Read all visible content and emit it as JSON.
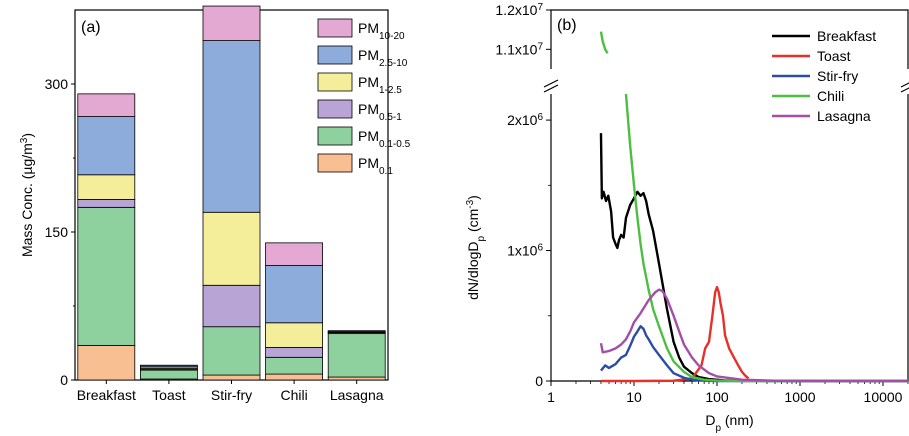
{
  "chart_data": [
    {
      "type": "bar",
      "stacked": true,
      "panel_label": "(a)",
      "ylabel": "Mass Conc. (µg/m³)",
      "ylabel_parts": {
        "base": "Mass Conc. (µg/m",
        "sup": "3",
        "end": ")"
      },
      "xlabel": "",
      "ylim": [
        0,
        375
      ],
      "yticks": [
        {
          "v": 0,
          "label": "0"
        },
        {
          "v": 150,
          "label": "150"
        },
        {
          "v": 300,
          "label": "300"
        }
      ],
      "categories": [
        "Breakfast",
        "Toast",
        "Stir-fry",
        "Chili",
        "Lasagna"
      ],
      "legend_position": "top-right",
      "series": [
        {
          "name": "PM0.1",
          "base": "PM",
          "sub": "0.1",
          "color": "#F8BF93",
          "values": [
            35,
            1,
            5,
            6,
            3
          ]
        },
        {
          "name": "PM0.1-0.5",
          "base": "PM",
          "sub": "0.1-0.5",
          "color": "#8FD19E",
          "values": [
            140,
            9,
            49,
            17,
            44
          ]
        },
        {
          "name": "PM0.5-1",
          "base": "PM",
          "sub": "0.5-1",
          "color": "#B9A4D6",
          "values": [
            8,
            1,
            42,
            10,
            1
          ]
        },
        {
          "name": "PM1-2.5",
          "base": "PM",
          "sub": "1-2.5",
          "color": "#F4EE9B",
          "values": [
            25,
            1,
            74,
            25,
            0.5
          ]
        },
        {
          "name": "PM2.5-10",
          "base": "PM",
          "sub": "2.5-10",
          "color": "#8DABDB",
          "values": [
            59,
            2,
            174,
            58,
            1
          ]
        },
        {
          "name": "PM10-20",
          "base": "PM",
          "sub": "10-20",
          "color": "#E3A9D3",
          "values": [
            23,
            1,
            35,
            23,
            0.5
          ]
        }
      ]
    },
    {
      "type": "line",
      "panel_label": "(b)",
      "xscale": "log",
      "xlim": [
        1,
        20000
      ],
      "xlabel": "Dp (nm)",
      "xlabel_parts": {
        "base": "D",
        "sub": "p",
        "end": " (nm)"
      },
      "ylabel": "dN/dlogDp (cm⁻³)",
      "ylabel_parts": {
        "base": "dN/dlogD",
        "sub": "p",
        "mid": " (cm",
        "sup": "-3",
        "end": ")"
      },
      "y_axis_break": {
        "lower_range": [
          0,
          2200000
        ],
        "upper_range": [
          10500000,
          12000000
        ]
      },
      "xticks": [
        {
          "v": 1,
          "label": "1"
        },
        {
          "v": 10,
          "label": "10"
        },
        {
          "v": 100,
          "label": "100"
        },
        {
          "v": 1000,
          "label": "1000"
        },
        {
          "v": 10000,
          "label": "10000"
        }
      ],
      "yticks_lower": [
        {
          "v": 0,
          "label": "0"
        },
        {
          "v": 1000000,
          "label": "1x10",
          "sup": "6"
        },
        {
          "v": 2000000,
          "label": "2x10",
          "sup": "6"
        }
      ],
      "yticks_upper": [
        {
          "v": 11000000,
          "label": "1.1x10",
          "sup": "7"
        },
        {
          "v": 12000000,
          "label": "1.2x10",
          "sup": "7"
        }
      ],
      "legend_position": "top-right",
      "series": [
        {
          "name": "Breakfast",
          "color": "#000000",
          "points": [
            [
              4,
              1900000
            ],
            [
              4.1,
              1400000
            ],
            [
              4.3,
              1450000
            ],
            [
              4.6,
              1380000
            ],
            [
              4.9,
              1420000
            ],
            [
              5.3,
              1300000
            ],
            [
              5.6,
              1100000
            ],
            [
              6.0,
              1050000
            ],
            [
              6.3,
              1020000
            ],
            [
              6.6,
              1080000
            ],
            [
              7,
              1120000
            ],
            [
              7.5,
              1100000
            ],
            [
              8,
              1250000
            ],
            [
              9,
              1350000
            ],
            [
              10,
              1400000
            ],
            [
              11,
              1450000
            ],
            [
              12,
              1420000
            ],
            [
              13,
              1440000
            ],
            [
              14,
              1380000
            ],
            [
              15,
              1280000
            ],
            [
              17,
              1150000
            ],
            [
              20,
              900000
            ],
            [
              25,
              550000
            ],
            [
              30,
              300000
            ],
            [
              35,
              180000
            ],
            [
              40,
              110000
            ],
            [
              50,
              60000
            ],
            [
              60,
              30000
            ],
            [
              80,
              15000
            ],
            [
              120,
              5000
            ],
            [
              200,
              2000
            ],
            [
              500,
              1000
            ],
            [
              2000,
              0
            ],
            [
              20000,
              0
            ]
          ]
        },
        {
          "name": "Toast",
          "color": "#E8302A",
          "points": [
            [
              4,
              0
            ],
            [
              10,
              0
            ],
            [
              30,
              2000
            ],
            [
              50,
              20000
            ],
            [
              65,
              120000
            ],
            [
              72,
              250000
            ],
            [
              80,
              300000
            ],
            [
              88,
              500000
            ],
            [
              95,
              680000
            ],
            [
              100,
              720000
            ],
            [
              105,
              680000
            ],
            [
              110,
              600000
            ],
            [
              118,
              500000
            ],
            [
              125,
              350000
            ],
            [
              140,
              250000
            ],
            [
              160,
              180000
            ],
            [
              180,
              120000
            ],
            [
              200,
              70000
            ],
            [
              220,
              40000
            ],
            [
              240,
              20000
            ]
          ]
        },
        {
          "name": "Stir-fry",
          "color": "#2B4DA3",
          "points": [
            [
              4,
              80000
            ],
            [
              4.5,
              120000
            ],
            [
              5,
              100000
            ],
            [
              6,
              130000
            ],
            [
              7,
              180000
            ],
            [
              8,
              200000
            ],
            [
              9,
              270000
            ],
            [
              10,
              340000
            ],
            [
              11,
              380000
            ],
            [
              12,
              420000
            ],
            [
              13,
              400000
            ],
            [
              14,
              350000
            ],
            [
              15,
              320000
            ],
            [
              17,
              260000
            ],
            [
              20,
              200000
            ],
            [
              25,
              120000
            ],
            [
              30,
              60000
            ],
            [
              40,
              25000
            ],
            [
              50,
              10000
            ],
            [
              60,
              5000
            ],
            [
              100,
              0
            ],
            [
              20000,
              0
            ]
          ]
        },
        {
          "name": "Chili",
          "color": "#4DBF40",
          "points": [
            [
              4,
              11450000
            ],
            [
              4.2,
              11200000
            ],
            [
              4.5,
              11000000
            ],
            [
              4.8,
              10900000
            ],
            [
              6,
              10000000
            ],
            [
              8,
              2200000
            ],
            [
              9,
              1800000
            ],
            [
              10,
              1500000
            ],
            [
              11,
              1250000
            ],
            [
              12,
              1050000
            ],
            [
              13,
              900000
            ],
            [
              15,
              700000
            ],
            [
              17,
              550000
            ],
            [
              20,
              420000
            ],
            [
              25,
              250000
            ],
            [
              30,
              150000
            ],
            [
              40,
              70000
            ],
            [
              50,
              30000
            ],
            [
              70,
              10000
            ],
            [
              100,
              3000
            ],
            [
              200,
              0
            ],
            [
              20000,
              0
            ]
          ]
        },
        {
          "name": "Lasagna",
          "color": "#A54EA6",
          "points": [
            [
              4,
              290000
            ],
            [
              4.2,
              220000
            ],
            [
              5,
              230000
            ],
            [
              6,
              250000
            ],
            [
              7,
              280000
            ],
            [
              8,
              320000
            ],
            [
              9,
              380000
            ],
            [
              10,
              450000
            ],
            [
              12,
              520000
            ],
            [
              15,
              620000
            ],
            [
              18,
              680000
            ],
            [
              20,
              700000
            ],
            [
              22,
              690000
            ],
            [
              25,
              630000
            ],
            [
              30,
              500000
            ],
            [
              35,
              380000
            ],
            [
              40,
              280000
            ],
            [
              50,
              180000
            ],
            [
              60,
              120000
            ],
            [
              80,
              60000
            ],
            [
              100,
              35000
            ],
            [
              200,
              10000
            ],
            [
              500,
              2000
            ],
            [
              1000,
              0
            ],
            [
              20000,
              0
            ]
          ]
        }
      ]
    }
  ]
}
